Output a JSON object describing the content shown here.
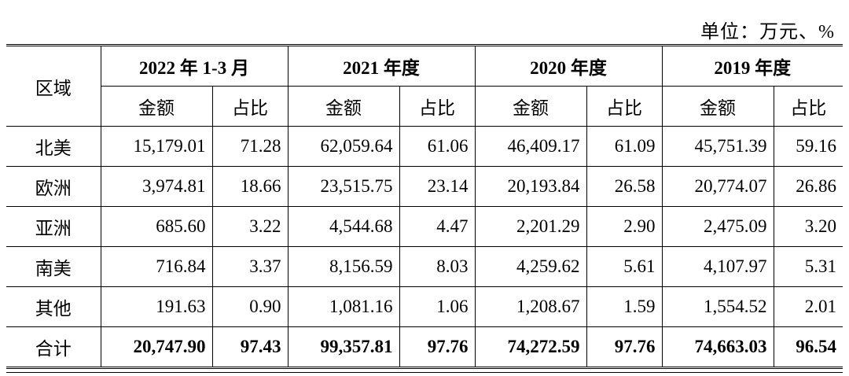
{
  "unit_note": "单位：万元、%",
  "header": {
    "region_label": "区域",
    "periods": [
      "2022 年 1-3 月",
      "2021 年度",
      "2020 年度",
      "2019 年度"
    ],
    "amount_label": "金额",
    "share_label": "占比"
  },
  "rows": [
    {
      "region": "北美",
      "cells": [
        "15,179.01",
        "71.28",
        "62,059.64",
        "61.06",
        "46,409.17",
        "61.09",
        "45,751.39",
        "59.16"
      ]
    },
    {
      "region": "欧洲",
      "cells": [
        "3,974.81",
        "18.66",
        "23,515.75",
        "23.14",
        "20,193.84",
        "26.58",
        "20,774.07",
        "26.86"
      ]
    },
    {
      "region": "亚洲",
      "cells": [
        "685.60",
        "3.22",
        "4,544.68",
        "4.47",
        "2,201.29",
        "2.90",
        "2,475.09",
        "3.20"
      ]
    },
    {
      "region": "南美",
      "cells": [
        "716.84",
        "3.37",
        "8,156.59",
        "8.03",
        "4,259.62",
        "5.61",
        "4,107.97",
        "5.31"
      ]
    },
    {
      "region": "其他",
      "cells": [
        "191.63",
        "0.90",
        "1,081.16",
        "1.06",
        "1,208.67",
        "1.59",
        "1,554.52",
        "2.01"
      ]
    },
    {
      "region": "合计",
      "cells": [
        "20,747.90",
        "97.43",
        "99,357.81",
        "97.76",
        "74,272.59",
        "97.76",
        "74,663.03",
        "96.54"
      ]
    }
  ]
}
